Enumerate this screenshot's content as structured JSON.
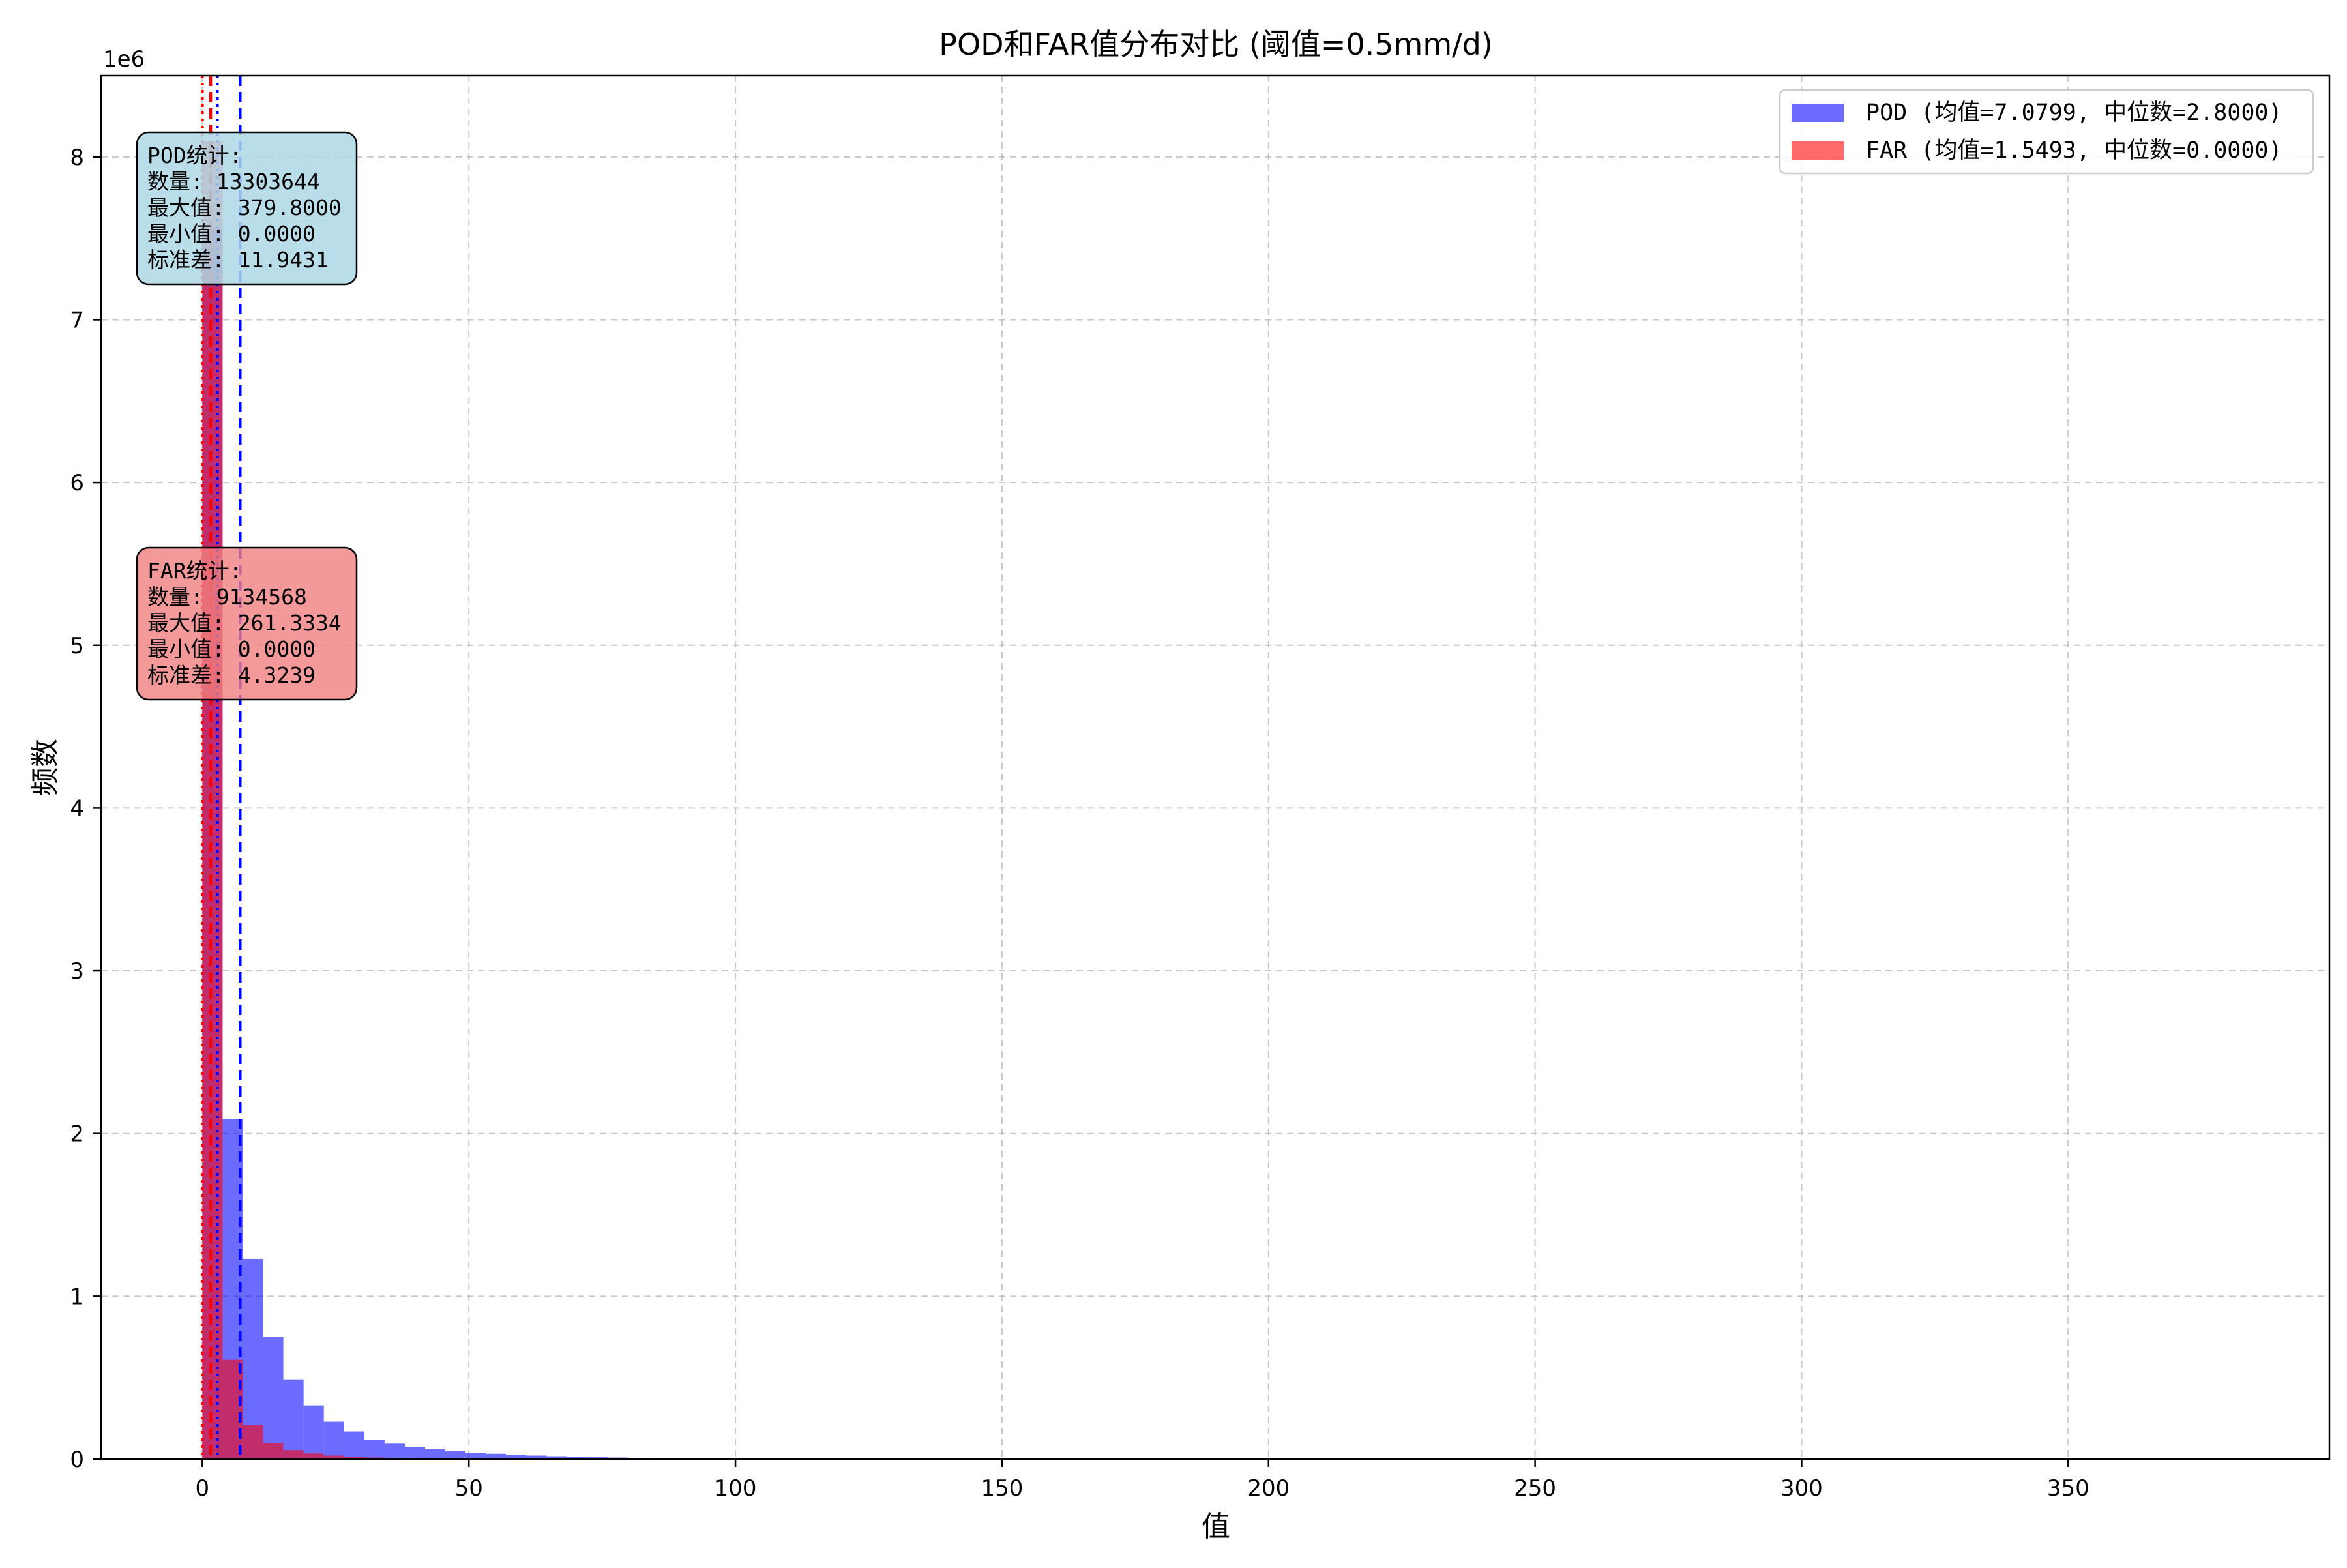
{
  "chart_data": {
    "type": "bar",
    "title": "POD和FAR值分布对比 (阈值=0.5mm/d)",
    "xlabel": "值",
    "ylabel": "频数",
    "y_scale_label": "1e6",
    "y_multiplier": 1000000,
    "xlim": [
      -19,
      399
    ],
    "ylim": [
      0,
      8500000
    ],
    "xticks": [
      0,
      50,
      100,
      150,
      200,
      250,
      300,
      350
    ],
    "yticks": [
      0,
      1,
      2,
      3,
      4,
      5,
      6,
      7,
      8
    ],
    "grid": true,
    "legend_position": "upper right",
    "bin_width": 3.798,
    "series": [
      {
        "name": "POD (均值=7.0799, 中位数=2.8000)",
        "color": "#0000ff",
        "opacity": 0.58,
        "bin_start": 0,
        "values": [
          7560000,
          2090000,
          1230000,
          750000,
          490000,
          330000,
          230000,
          170000,
          120000,
          95000,
          75000,
          60000,
          48000,
          40000,
          33000,
          27000,
          22000,
          18000,
          15000,
          12000,
          10000,
          8000,
          6500,
          5500,
          4500,
          3700,
          3000,
          2500,
          2000,
          1700,
          1400,
          1200,
          1000,
          800,
          700,
          550,
          450,
          380,
          300,
          250,
          200,
          170,
          140,
          120,
          100,
          85,
          70,
          60,
          50,
          40,
          35,
          30,
          25,
          20,
          18,
          15,
          13,
          11,
          10,
          9,
          8,
          7,
          6,
          5,
          5,
          4,
          4,
          3,
          3,
          3,
          2,
          2,
          2,
          2,
          1,
          1,
          1,
          1,
          1,
          1,
          1,
          1,
          1,
          1,
          1,
          1,
          1,
          1,
          1,
          1,
          1,
          1,
          1,
          1,
          1,
          1,
          1,
          1,
          1,
          1
        ]
      },
      {
        "name": "FAR (均值=1.5493, 中位数=0.0000)",
        "color": "#ff0000",
        "opacity": 0.58,
        "bin_start": 0,
        "values": [
          8100000,
          610000,
          210000,
          100000,
          55000,
          35000,
          22000,
          15000,
          10000,
          7000,
          5000,
          3500,
          2500,
          1800,
          1300,
          1000,
          700,
          500,
          400,
          300,
          200,
          150,
          100,
          80,
          60,
          50,
          40,
          30,
          20,
          15
        ]
      }
    ],
    "reference_lines": [
      {
        "series": "POD",
        "stat": "mean",
        "x": 7.0799,
        "color": "#0000ff",
        "style": "dashed"
      },
      {
        "series": "POD",
        "stat": "median",
        "x": 2.8,
        "color": "#0000ff",
        "style": "dotted"
      },
      {
        "series": "FAR",
        "stat": "mean",
        "x": 1.5493,
        "color": "#ff0000",
        "style": "dashed"
      },
      {
        "series": "FAR",
        "stat": "median",
        "x": 0.0,
        "color": "#ff0000",
        "style": "dotted"
      }
    ],
    "annotations": [
      {
        "id": "pod-stats",
        "lines": [
          "POD统计:",
          "数量: 13303644",
          "最大值: 379.8000",
          "最小值: 0.0000",
          "标准差: 11.9431"
        ],
        "background": "#add8e6"
      },
      {
        "id": "far-stats",
        "lines": [
          "FAR统计:",
          "数量: 9134568",
          "最大值: 261.3334",
          "最小值: 0.0000",
          "标准差: 4.3239"
        ],
        "background": "#f08080"
      }
    ]
  }
}
